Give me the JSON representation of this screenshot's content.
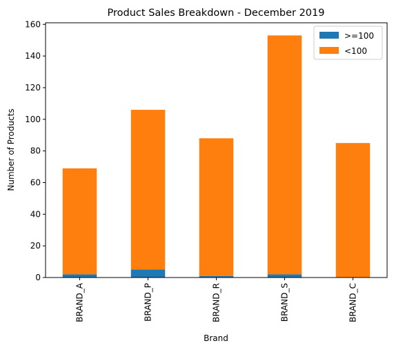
{
  "chart_data": {
    "type": "bar",
    "stacked": true,
    "title": "Product Sales Breakdown - December 2019",
    "xlabel": "Brand",
    "ylabel": "Number of Products",
    "categories": [
      "BRAND_A",
      "BRAND_P",
      "BRAND_R",
      "BRAND_S",
      "BRAND_C"
    ],
    "series": [
      {
        "name": ">=100",
        "color": "#1f77b4",
        "values": [
          2,
          5,
          1,
          2,
          0
        ]
      },
      {
        "name": "<100",
        "color": "#ff7f0e",
        "values": [
          67,
          101,
          87,
          151,
          85
        ]
      }
    ],
    "ylim": [
      0,
      161
    ],
    "yticks": [
      0,
      20,
      40,
      60,
      80,
      100,
      120,
      140,
      160
    ],
    "grid": false,
    "legend_position": "top-right"
  }
}
